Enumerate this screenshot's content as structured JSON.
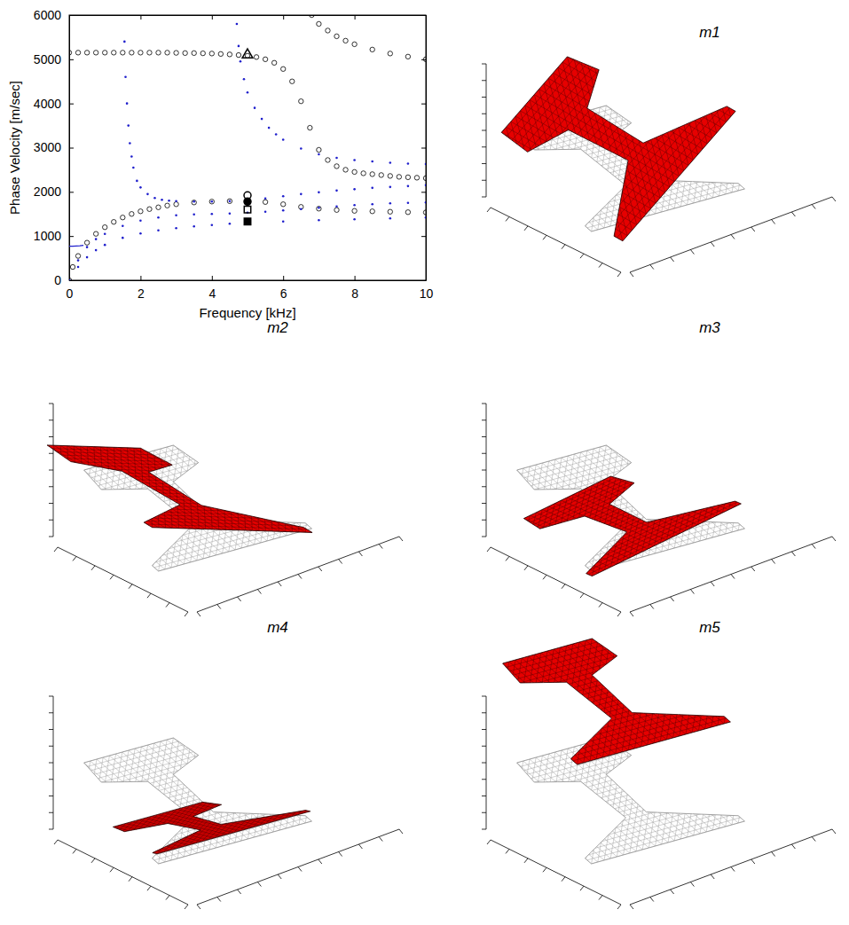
{
  "chart_data": {
    "type": "scatter",
    "x_label": "Frequency [kHz]",
    "y_label": "Phase Velocity [m/sec]",
    "xlim": [
      0,
      10
    ],
    "ylim": [
      0,
      6000
    ],
    "xticks": [
      0,
      2,
      4,
      6,
      8,
      10
    ],
    "yticks": [
      0,
      1000,
      2000,
      3000,
      4000,
      5000,
      6000
    ],
    "series": [
      {
        "color": "#000000",
        "marker": "circle",
        "x": [
          0,
          0.25,
          0.5,
          0.75,
          1,
          1.25,
          1.5,
          1.75,
          2,
          2.25,
          2.5,
          2.75,
          3,
          3.25,
          3.5,
          3.75,
          4,
          4.25,
          4.5,
          4.75,
          5,
          5.25,
          5.5,
          5.75,
          6,
          6.25,
          6.5,
          6.75,
          7,
          7.25,
          7.5,
          7.75,
          8,
          8.25,
          8.5,
          8.75,
          9,
          9.25,
          9.5,
          9.75,
          10
        ],
        "values": [
          5150,
          5150,
          5150,
          5150,
          5150,
          5150,
          5150,
          5150,
          5150,
          5150,
          5150,
          5150,
          5145,
          5140,
          5140,
          5135,
          5130,
          5120,
          5110,
          5095,
          5080,
          5050,
          5000,
          4920,
          4780,
          4500,
          4050,
          3450,
          2950,
          2720,
          2580,
          2500,
          2450,
          2420,
          2400,
          2380,
          2360,
          2340,
          2330,
          2320,
          2310
        ]
      },
      {
        "color": "#000000",
        "marker": "circle",
        "x": [
          6.8,
          7,
          7.25,
          7.5,
          7.75,
          8,
          8.5,
          9,
          9.5,
          10
        ],
        "values": [
          6000,
          5800,
          5650,
          5520,
          5420,
          5340,
          5220,
          5130,
          5060,
          5000
        ]
      },
      {
        "color": "#000000",
        "marker": "circle",
        "x": [
          0,
          0.1,
          0.25,
          0.5,
          0.75,
          1,
          1.25,
          1.5,
          1.75,
          2,
          2.25,
          2.5,
          2.75,
          3,
          3.5,
          4,
          4.5,
          5,
          5.5,
          6,
          6.5,
          7,
          7.5,
          8,
          8.5,
          9,
          9.5,
          10
        ],
        "values": [
          0,
          300,
          550,
          850,
          1050,
          1200,
          1320,
          1420,
          1500,
          1560,
          1610,
          1650,
          1690,
          1720,
          1760,
          1780,
          1790,
          1790,
          1770,
          1720,
          1660,
          1620,
          1590,
          1570,
          1560,
          1550,
          1540,
          1535
        ]
      },
      {
        "color": "#1f1fcc",
        "marker": "dot",
        "x": [
          1.55,
          1.58,
          1.62,
          1.66,
          1.7,
          1.75,
          1.8,
          1.9,
          2,
          2.2,
          2.4,
          2.6,
          2.8,
          3,
          3.5,
          4,
          4.5,
          5,
          5.5,
          6,
          6.5,
          7,
          7.5,
          8,
          8.5,
          9,
          9.5,
          10
        ],
        "values": [
          5400,
          4600,
          4000,
          3500,
          3100,
          2800,
          2550,
          2250,
          2100,
          1950,
          1860,
          1820,
          1800,
          1790,
          1780,
          1780,
          1790,
          1800,
          1850,
          1900,
          1950,
          1990,
          2030,
          2060,
          2090,
          2110,
          2130,
          2150
        ]
      },
      {
        "color": "#1f1fcc",
        "marker": "dot",
        "x": [
          4.7,
          4.75,
          4.8,
          4.9,
          5,
          5.2,
          5.4,
          5.6,
          5.8,
          6,
          6.5,
          7,
          7.5,
          8,
          8.5,
          9,
          9.5,
          10
        ],
        "values": [
          5800,
          5300,
          4950,
          4550,
          4250,
          3900,
          3650,
          3450,
          3300,
          3180,
          2980,
          2850,
          2770,
          2720,
          2690,
          2660,
          2640,
          2630
        ]
      },
      {
        "color": "#1f1fcc",
        "marker": "dot",
        "x": [
          0,
          0.25,
          0.5,
          0.75,
          1,
          1.5,
          2,
          2.5,
          3,
          3.5,
          4,
          4.5,
          5,
          5.5,
          6,
          6.5,
          7,
          7.5,
          8,
          8.5,
          9,
          9.5,
          10
        ],
        "values": [
          0,
          450,
          750,
          930,
          1050,
          1230,
          1350,
          1420,
          1470,
          1490,
          1500,
          1510,
          1530,
          1550,
          1580,
          1610,
          1640,
          1670,
          1700,
          1720,
          1740,
          1750,
          1760
        ]
      },
      {
        "color": "#1f1fcc",
        "marker": "dot",
        "x": [
          0,
          0.25,
          0.5,
          0.75,
          1,
          1.5,
          2,
          2.5,
          3,
          3.5,
          4,
          4.5,
          5,
          6,
          7,
          8,
          9,
          10
        ],
        "values": [
          0,
          300,
          520,
          680,
          800,
          960,
          1060,
          1130,
          1180,
          1220,
          1250,
          1280,
          1300,
          1330,
          1360,
          1380,
          1400,
          1420
        ]
      },
      {
        "color": "#1f1fcc",
        "type": "line",
        "line_style": "solid",
        "x": [
          0,
          0.1,
          0.2,
          0.3,
          0.4
        ],
        "values": [
          770,
          770,
          775,
          780,
          790
        ]
      },
      {
        "color": "#000000",
        "marker": "triangle",
        "x": [
          5
        ],
        "values": [
          5100
        ]
      },
      {
        "color": "#000000",
        "marker": "circle",
        "x": [
          5
        ],
        "values": [
          1920
        ]
      },
      {
        "color": "#000000",
        "marker": "filled-circle",
        "x": [
          5
        ],
        "values": [
          1780
        ]
      },
      {
        "color": "#000000",
        "marker": "square",
        "x": [
          5
        ],
        "values": [
          1600
        ]
      },
      {
        "color": "#000000",
        "marker": "filled-square",
        "x": [
          5
        ],
        "values": [
          1330
        ]
      }
    ]
  },
  "mode_shapes": {
    "titles": [
      "m1",
      "m2",
      "m3",
      "m4",
      "m5"
    ]
  }
}
